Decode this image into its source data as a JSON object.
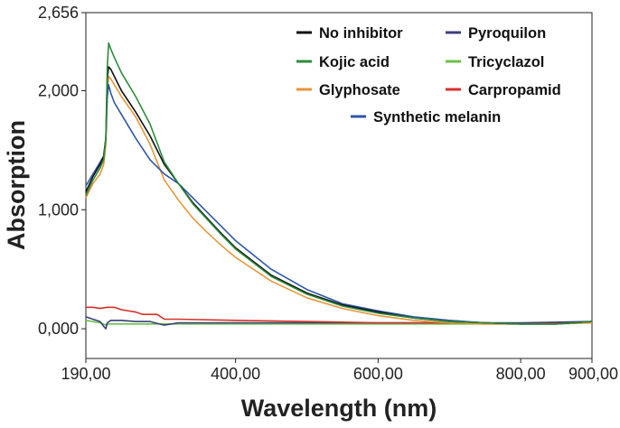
{
  "chart_data": {
    "type": "line",
    "xlabel": "Wavelength (nm)",
    "ylabel": "Absorption",
    "xlim": [
      190,
      900
    ],
    "ylim": [
      -0.25,
      2.656
    ],
    "xticks": [
      {
        "value": 190,
        "label": "190,00"
      },
      {
        "value": 400,
        "label": "400,00"
      },
      {
        "value": 600,
        "label": "600,00"
      },
      {
        "value": 800,
        "label": "800,00"
      },
      {
        "value": 900,
        "label": "900,00"
      }
    ],
    "yticks": [
      {
        "value": 0,
        "label": "0,000"
      },
      {
        "value": 1,
        "label": "1,000"
      },
      {
        "value": 2,
        "label": "2,000"
      },
      {
        "value": 2.656,
        "label": "2,656"
      }
    ],
    "legend_position": "top-right",
    "series": [
      {
        "name": "No inhibitor",
        "color": "#111111",
        "x": [
          190,
          200,
          210,
          215,
          218,
          220,
          222,
          225,
          230,
          240,
          260,
          280,
          300,
          320,
          340,
          360,
          380,
          400,
          450,
          500,
          550,
          600,
          650,
          700,
          750,
          800,
          850,
          900
        ],
        "y": [
          1.15,
          1.28,
          1.38,
          1.45,
          1.6,
          2.1,
          2.2,
          2.18,
          2.12,
          2.0,
          1.82,
          1.62,
          1.38,
          1.22,
          1.06,
          0.93,
          0.8,
          0.68,
          0.45,
          0.3,
          0.2,
          0.14,
          0.09,
          0.06,
          0.05,
          0.04,
          0.04,
          0.06
        ]
      },
      {
        "name": "Pyroquilon",
        "color": "#3b3f7a",
        "x": [
          190,
          200,
          210,
          215,
          218,
          220,
          225,
          240,
          260,
          280,
          300,
          320,
          400,
          500,
          600,
          700,
          800,
          900
        ],
        "y": [
          0.1,
          0.08,
          0.06,
          0.02,
          0.0,
          0.05,
          0.07,
          0.07,
          0.06,
          0.06,
          0.03,
          0.05,
          0.05,
          0.05,
          0.05,
          0.05,
          0.05,
          0.06
        ]
      },
      {
        "name": "Kojic acid",
        "color": "#2e8b3c",
        "x": [
          190,
          200,
          210,
          215,
          218,
          220,
          222,
          225,
          230,
          240,
          260,
          280,
          300,
          320,
          340,
          360,
          380,
          400,
          450,
          500,
          550,
          600,
          650,
          700,
          750,
          800,
          850,
          900
        ],
        "y": [
          1.12,
          1.25,
          1.35,
          1.42,
          1.6,
          2.2,
          2.4,
          2.35,
          2.28,
          2.15,
          1.95,
          1.72,
          1.4,
          1.22,
          1.05,
          0.92,
          0.79,
          0.67,
          0.44,
          0.29,
          0.19,
          0.13,
          0.09,
          0.06,
          0.05,
          0.04,
          0.04,
          0.06
        ]
      },
      {
        "name": "Tricyclazol",
        "color": "#6cc04a",
        "x": [
          190,
          200,
          210,
          215,
          218,
          220,
          225,
          240,
          260,
          280,
          300,
          320,
          400,
          500,
          600,
          700,
          800,
          900
        ],
        "y": [
          0.07,
          0.06,
          0.05,
          0.04,
          0.03,
          0.04,
          0.04,
          0.04,
          0.04,
          0.04,
          0.04,
          0.04,
          0.04,
          0.04,
          0.04,
          0.04,
          0.04,
          0.05
        ]
      },
      {
        "name": "Glyphosate",
        "color": "#e8963a",
        "x": [
          190,
          200,
          210,
          215,
          218,
          220,
          222,
          225,
          230,
          240,
          260,
          280,
          300,
          320,
          340,
          360,
          380,
          400,
          450,
          500,
          550,
          600,
          650,
          700,
          750,
          800,
          850,
          900
        ],
        "y": [
          1.1,
          1.22,
          1.3,
          1.38,
          1.55,
          2.0,
          2.12,
          2.1,
          2.05,
          1.95,
          1.78,
          1.55,
          1.25,
          1.08,
          0.93,
          0.81,
          0.7,
          0.6,
          0.4,
          0.26,
          0.17,
          0.11,
          0.07,
          0.05,
          0.04,
          0.04,
          0.04,
          0.05
        ]
      },
      {
        "name": "Carpropamid",
        "color": "#d6312a",
        "x": [
          190,
          200,
          210,
          220,
          230,
          240,
          260,
          270,
          280,
          290,
          300,
          320,
          400,
          500,
          600,
          700,
          800,
          900
        ],
        "y": [
          0.18,
          0.18,
          0.17,
          0.18,
          0.18,
          0.16,
          0.14,
          0.12,
          0.12,
          0.12,
          0.08,
          0.08,
          0.07,
          0.06,
          0.05,
          0.05,
          0.04,
          0.05
        ]
      },
      {
        "name": "Synthetic melanin",
        "color": "#2f56a8",
        "x": [
          190,
          200,
          210,
          215,
          218,
          220,
          222,
          225,
          230,
          240,
          260,
          280,
          300,
          320,
          340,
          360,
          380,
          400,
          450,
          500,
          550,
          600,
          650,
          700,
          750,
          800,
          850,
          900
        ],
        "y": [
          1.2,
          1.3,
          1.4,
          1.45,
          1.6,
          1.95,
          2.05,
          1.98,
          1.9,
          1.8,
          1.6,
          1.42,
          1.3,
          1.22,
          1.1,
          0.98,
          0.86,
          0.74,
          0.5,
          0.33,
          0.21,
          0.15,
          0.1,
          0.07,
          0.05,
          0.04,
          0.04,
          0.06
        ]
      }
    ]
  }
}
